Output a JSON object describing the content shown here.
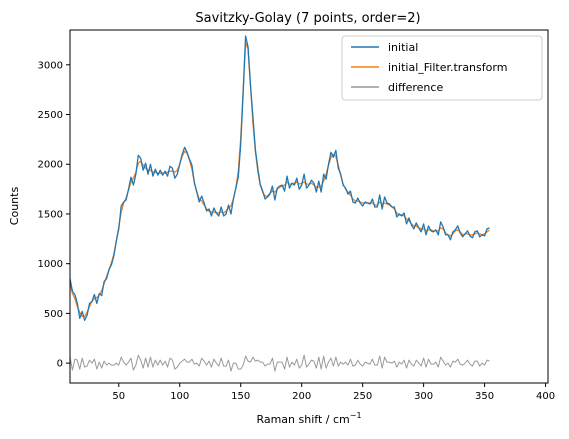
{
  "chart_data": {
    "type": "line",
    "title": "Savitzky-Golay (7 points, order=2)",
    "xlabel_base": "Raman shift / cm",
    "xlabel_sup": "−1",
    "ylabel": "Counts",
    "xlim": [
      10,
      402
    ],
    "ylim": [
      -200,
      3350
    ],
    "x_ticks": [
      50,
      100,
      150,
      200,
      250,
      300,
      350,
      400
    ],
    "x_tick_labels": [
      "50",
      "100",
      "150",
      "200",
      "250",
      "300",
      "350",
      "400"
    ],
    "y_ticks": [
      0,
      500,
      1000,
      1500,
      2000,
      2500,
      3000
    ],
    "y_tick_labels": [
      "0",
      "500",
      "1000",
      "1500",
      "2000",
      "2500",
      "3000"
    ],
    "grid": false,
    "legend_placement": "top-right",
    "series": [
      {
        "name": "initial",
        "color": "#1f77b4",
        "x_start": 10,
        "x_step": 2,
        "values": [
          850,
          720,
          690,
          600,
          450,
          520,
          430,
          480,
          600,
          620,
          690,
          600,
          700,
          680,
          820,
          850,
          940,
          990,
          1080,
          1230,
          1350,
          1580,
          1620,
          1640,
          1750,
          1870,
          1790,
          1900,
          2090,
          2060,
          1940,
          2010,
          1900,
          2000,
          1880,
          1950,
          1890,
          1940,
          1890,
          1930,
          1880,
          1980,
          1960,
          1860,
          1900,
          2000,
          2100,
          2170,
          2120,
          2050,
          1990,
          1810,
          1720,
          1620,
          1680,
          1610,
          1530,
          1550,
          1480,
          1560,
          1510,
          1480,
          1570,
          1480,
          1500,
          1590,
          1500,
          1650,
          1760,
          1870,
          2200,
          2720,
          3290,
          3180,
          2800,
          2480,
          2150,
          1960,
          1800,
          1730,
          1650,
          1670,
          1700,
          1780,
          1640,
          1760,
          1780,
          1790,
          1730,
          1880,
          1760,
          1810,
          1790,
          1860,
          1750,
          1790,
          1900,
          1760,
          1790,
          1840,
          1810,
          1720,
          1830,
          1720,
          1900,
          1850,
          2000,
          2120,
          2070,
          2140,
          1960,
          1900,
          1790,
          1760,
          1700,
          1730,
          1620,
          1610,
          1660,
          1610,
          1580,
          1620,
          1610,
          1600,
          1650,
          1570,
          1570,
          1690,
          1550,
          1670,
          1610,
          1600,
          1570,
          1570,
          1470,
          1500,
          1480,
          1510,
          1400,
          1460,
          1390,
          1350,
          1410,
          1360,
          1320,
          1400,
          1290,
          1380,
          1330,
          1320,
          1340,
          1290,
          1420,
          1370,
          1290,
          1290,
          1240,
          1320,
          1340,
          1380,
          1310,
          1270,
          1300,
          1330,
          1280,
          1260,
          1320,
          1330,
          1270,
          1290,
          1280,
          1350,
          1360
        ]
      },
      {
        "name": "initial_Filter.transform",
        "color": "#ff7f0e",
        "x_start": 10,
        "x_step": 2,
        "values": [
          800,
          700,
          650,
          570,
          510,
          470,
          470,
          510,
          570,
          620,
          650,
          660,
          690,
          730,
          800,
          870,
          940,
          1010,
          1100,
          1230,
          1370,
          1520,
          1610,
          1660,
          1740,
          1820,
          1860,
          1920,
          2010,
          2030,
          1990,
          1960,
          1940,
          1940,
          1920,
          1920,
          1910,
          1910,
          1910,
          1910,
          1920,
          1930,
          1930,
          1920,
          1940,
          2000,
          2080,
          2130,
          2110,
          2040,
          1950,
          1820,
          1720,
          1650,
          1630,
          1590,
          1550,
          1530,
          1520,
          1520,
          1510,
          1510,
          1520,
          1510,
          1530,
          1560,
          1580,
          1650,
          1760,
          1930,
          2260,
          2740,
          3220,
          3160,
          2790,
          2420,
          2130,
          1930,
          1790,
          1720,
          1680,
          1680,
          1710,
          1730,
          1720,
          1750,
          1770,
          1780,
          1790,
          1820,
          1800,
          1800,
          1810,
          1820,
          1800,
          1810,
          1820,
          1800,
          1800,
          1810,
          1790,
          1770,
          1770,
          1780,
          1830,
          1900,
          1990,
          2070,
          2100,
          2080,
          1990,
          1890,
          1800,
          1750,
          1720,
          1690,
          1650,
          1630,
          1630,
          1620,
          1610,
          1610,
          1610,
          1610,
          1610,
          1590,
          1590,
          1620,
          1600,
          1610,
          1600,
          1590,
          1570,
          1550,
          1510,
          1490,
          1490,
          1480,
          1450,
          1430,
          1400,
          1380,
          1380,
          1360,
          1350,
          1350,
          1330,
          1340,
          1340,
          1330,
          1330,
          1330,
          1360,
          1350,
          1310,
          1290,
          1280,
          1300,
          1330,
          1340,
          1320,
          1290,
          1300,
          1300,
          1290,
          1290,
          1300,
          1310,
          1300,
          1290,
          1300,
          1320,
          1340
        ]
      },
      {
        "name": "difference",
        "color": "#999999",
        "x_start": 10,
        "x_step": 2,
        "values": [
          60,
          -70,
          40,
          30,
          -60,
          50,
          -40,
          -30,
          30,
          0,
          40,
          -60,
          10,
          -50,
          20,
          -20,
          0,
          -20,
          -20,
          0,
          -20,
          60,
          10,
          -20,
          10,
          50,
          -70,
          -20,
          80,
          30,
          -50,
          50,
          -40,
          60,
          -40,
          30,
          -20,
          30,
          -20,
          20,
          -40,
          50,
          30,
          -60,
          -40,
          0,
          20,
          40,
          10,
          10,
          40,
          -10,
          0,
          -30,
          50,
          20,
          -20,
          20,
          -40,
          40,
          0,
          -30,
          50,
          -30,
          -30,
          30,
          -80,
          0,
          0,
          -60,
          -60,
          -20,
          70,
          20,
          10,
          60,
          20,
          30,
          10,
          10,
          -30,
          -10,
          -10,
          50,
          -80,
          10,
          10,
          10,
          -60,
          60,
          -40,
          10,
          -20,
          40,
          -50,
          -20,
          80,
          -40,
          -10,
          30,
          20,
          -50,
          60,
          -60,
          70,
          -50,
          10,
          50,
          -30,
          60,
          -30,
          10,
          -10,
          10,
          -20,
          40,
          -30,
          -20,
          30,
          -10,
          -30,
          10,
          0,
          -10,
          40,
          -20,
          -20,
          70,
          -50,
          60,
          10,
          10,
          0,
          20,
          -40,
          10,
          -10,
          30,
          -50,
          30,
          -10,
          -30,
          30,
          0,
          -30,
          50,
          -40,
          40,
          -10,
          -10,
          10,
          -40,
          60,
          20,
          -20,
          0,
          -40,
          20,
          10,
          40,
          -10,
          -20,
          0,
          30,
          -10,
          -30,
          20,
          20,
          -30,
          0,
          -20,
          30,
          20
        ]
      }
    ]
  }
}
